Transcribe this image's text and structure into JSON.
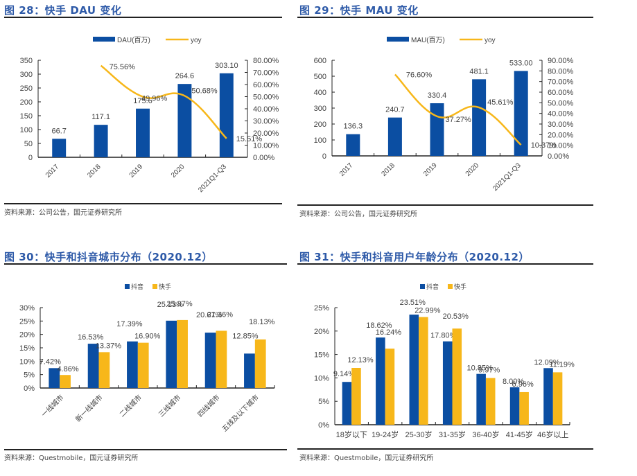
{
  "colors": {
    "blue": "#0b4ea2",
    "yellow": "#f7b71a",
    "title": "#2e5aa8",
    "axis": "#222222",
    "text": "#404040"
  },
  "figures": {
    "fig28": {
      "title": "图 28：快手 DAU 变化",
      "source": "资料来源：公司公告，国元证券研究所"
    },
    "fig29": {
      "title": "图 29：快手 MAU 变化",
      "source": "资料来源：公司公告，国元证券研究所"
    },
    "fig30": {
      "title": "图 30：快手和抖音城市分布（2020.12）",
      "source": "资料来源：Questmobile，国元证券研究所"
    },
    "fig31": {
      "title": "图 31：快手和抖音用户年龄分布（2020.12）",
      "source": "资料来源：Questmobile，国元证券研究所"
    }
  },
  "chart_data": [
    {
      "id": "fig28",
      "type": "bar",
      "title": "快手 DAU 变化",
      "categories": [
        "2017",
        "2018",
        "2019",
        "2020",
        "2021Q1-Q3"
      ],
      "series": [
        {
          "name": "DAU(百万)",
          "kind": "bar",
          "axis": "left",
          "values": [
            66.7,
            117.1,
            175.6,
            264.6,
            303.1
          ],
          "labels": [
            "66.7",
            "117.1",
            "175.6",
            "264.6",
            "303.10"
          ]
        },
        {
          "name": "yoy",
          "kind": "line",
          "axis": "right",
          "values": [
            null,
            75.56,
            49.96,
            50.68,
            15.51
          ],
          "labels": [
            "",
            "75.56%",
            "49.96%",
            "50.68%",
            "15.51%"
          ]
        }
      ],
      "yleft": {
        "min": 0,
        "max": 350,
        "ticks": [
          0,
          50,
          100,
          150,
          200,
          250,
          300,
          350
        ],
        "tick_labels": [
          "0",
          "50",
          "100",
          "150",
          "200",
          "250",
          "300",
          "350"
        ]
      },
      "yright": {
        "min": 0,
        "max": 80,
        "ticks": [
          0,
          10,
          20,
          30,
          40,
          50,
          60,
          70,
          80
        ],
        "tick_labels": [
          "0.00%",
          "10.00%",
          "20.00%",
          "30.00%",
          "40.00%",
          "50.00%",
          "60.00%",
          "70.00%",
          "80.00%"
        ]
      },
      "legend": "top",
      "grid": false,
      "xlabel_rotation": "45deg"
    },
    {
      "id": "fig29",
      "type": "bar",
      "title": "快手 MAU 变化",
      "categories": [
        "2017",
        "2018",
        "2019",
        "2020",
        "2021Q1-Q3"
      ],
      "series": [
        {
          "name": "MAU(百万)",
          "kind": "bar",
          "axis": "left",
          "values": [
            136.3,
            240.7,
            330.4,
            481.1,
            533.0
          ],
          "labels": [
            "136.3",
            "240.7",
            "330.4",
            "481.1",
            "533.00"
          ]
        },
        {
          "name": "yoy",
          "kind": "line",
          "axis": "right",
          "values": [
            null,
            76.6,
            37.27,
            45.61,
            10.37
          ],
          "labels": [
            "",
            "76.60%",
            "37.27%",
            "45.61%",
            "10.37%"
          ]
        }
      ],
      "yleft": {
        "min": 0,
        "max": 600,
        "ticks": [
          0,
          100,
          200,
          300,
          400,
          500,
          600
        ],
        "tick_labels": [
          "0",
          "100",
          "200",
          "300",
          "400",
          "500",
          "600"
        ]
      },
      "yright": {
        "min": 0,
        "max": 90,
        "ticks": [
          0,
          10,
          20,
          30,
          40,
          50,
          60,
          70,
          80,
          90
        ],
        "tick_labels": [
          "0.00%",
          "10.00%",
          "20.00%",
          "30.00%",
          "40.00%",
          "50.00%",
          "60.00%",
          "70.00%",
          "80.00%",
          "90.00%"
        ]
      },
      "legend": "top",
      "grid": false,
      "xlabel_rotation": "45deg"
    },
    {
      "id": "fig30",
      "type": "bar",
      "title": "快手和抖音城市分布（2020.12）",
      "categories": [
        "一线城市",
        "新一线城市",
        "二线城市",
        "三线城市",
        "四线城市",
        "五线及以下城市"
      ],
      "series": [
        {
          "name": "抖音",
          "values": [
            7.42,
            16.53,
            17.39,
            25.13,
            20.67,
            12.85
          ],
          "labels": [
            "7.42%",
            "16.53%",
            "17.39%",
            "25.13%",
            "20.67%",
            "12.85%"
          ]
        },
        {
          "name": "快手",
          "values": [
            4.86,
            13.37,
            16.9,
            25.37,
            21.36,
            18.13
          ],
          "labels": [
            "4.86%",
            "13.37%",
            "16.90%",
            "25.37%",
            "21.36%",
            "18.13%"
          ]
        }
      ],
      "y": {
        "min": 0,
        "max": 30,
        "ticks": [
          0,
          5,
          10,
          15,
          20,
          25,
          30
        ],
        "tick_labels": [
          "0%",
          "5%",
          "10%",
          "15%",
          "20%",
          "25%",
          "30%"
        ]
      },
      "legend": "top",
      "grid": false,
      "xlabel_rotation": "45deg"
    },
    {
      "id": "fig31",
      "type": "bar",
      "title": "快手和抖音用户年龄分布（2020.12）",
      "categories": [
        "18岁以下",
        "19-24岁",
        "25-30岁",
        "31-35岁",
        "36-40岁",
        "41-45岁",
        "46岁以上"
      ],
      "series": [
        {
          "name": "抖音",
          "values": [
            9.14,
            18.62,
            23.51,
            17.8,
            10.85,
            8.0,
            12.09
          ],
          "labels": [
            "9.14%",
            "18.62%",
            "23.51%",
            "17.80%",
            "10.85%",
            "8.00%",
            "12.09%"
          ]
        },
        {
          "name": "快手",
          "values": [
            12.13,
            16.24,
            22.99,
            20.53,
            9.97,
            6.96,
            11.19
          ],
          "labels": [
            "12.13%",
            "16.24%",
            "22.99%",
            "20.53%",
            "9.97%",
            "6.96%",
            "11.19%"
          ]
        }
      ],
      "y": {
        "min": 0,
        "max": 25,
        "ticks": [
          0,
          5,
          10,
          15,
          20,
          25
        ],
        "tick_labels": [
          "0%",
          "5%",
          "10%",
          "15%",
          "20%",
          "25%"
        ]
      },
      "legend": "top",
      "grid": false,
      "xlabel_rotation": "0"
    }
  ]
}
